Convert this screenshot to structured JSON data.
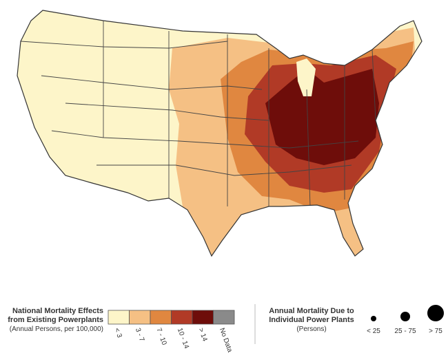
{
  "legend_mortality": {
    "title_lines": [
      "National Mortality Effects",
      "from Existing Powerplants"
    ],
    "subtitle": "(Annual Persons, per 100,000)",
    "classes": [
      {
        "label": "< 3",
        "color": "#fdf5c9"
      },
      {
        "label": "3 - 7",
        "color": "#f5c084"
      },
      {
        "label": "7 - 10",
        "color": "#e08740"
      },
      {
        "label": "10 - 14",
        "color": "#b13a26"
      },
      {
        "label": "> 14",
        "color": "#6e0d0a"
      },
      {
        "label": "No Data",
        "color": "#8a8a8a"
      }
    ]
  },
  "legend_plants": {
    "title_lines": [
      "Annual Mortality Due to",
      "Individual Power Plants"
    ],
    "subtitle": "(Persons)",
    "sizes": [
      "< 25",
      "25 - 75",
      "> 75"
    ]
  }
}
